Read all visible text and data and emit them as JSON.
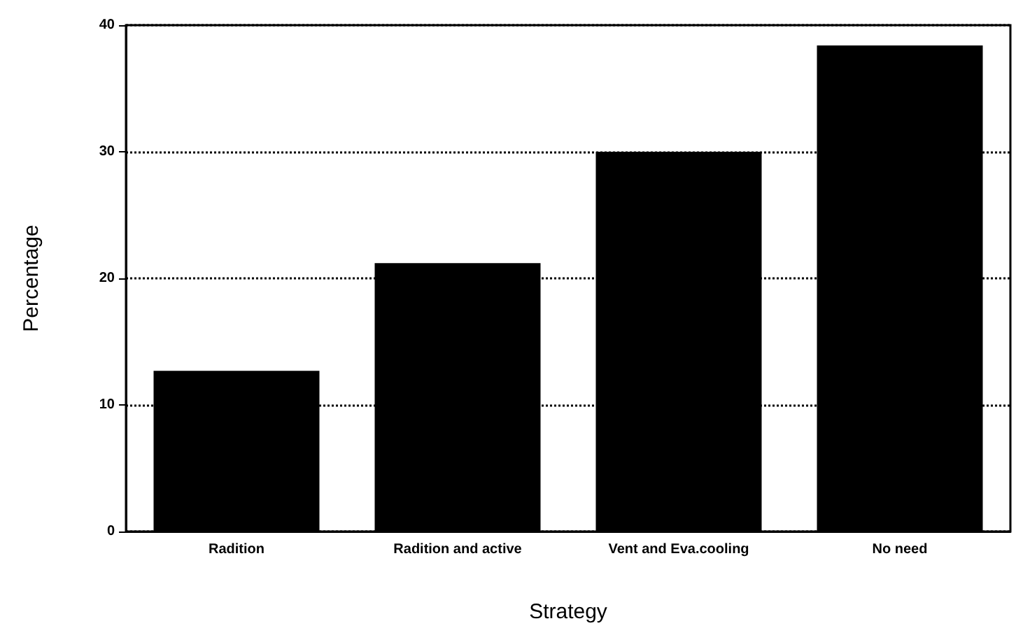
{
  "chart_data": {
    "type": "bar",
    "xlabel": "Strategy",
    "ylabel": "Percentage",
    "categories": [
      "Radition",
      "Radition and active",
      "Vent and Eva.cooling",
      "No need"
    ],
    "values": [
      12.7,
      21.2,
      30,
      38.4
    ],
    "color": "#000000",
    "ylim": [
      0,
      40
    ],
    "yticks": [
      0,
      10,
      20,
      30,
      40
    ],
    "grid": "y"
  }
}
